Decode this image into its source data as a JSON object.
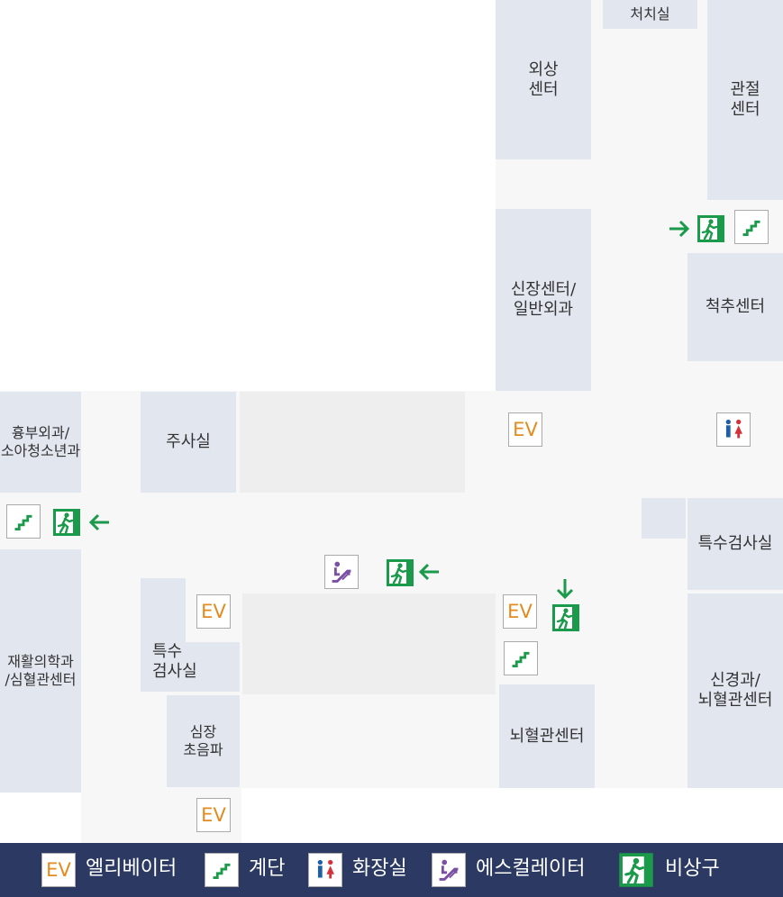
{
  "rooms": {
    "trauma_center": "외상\n센터",
    "treatment_room": "처치실",
    "joint_center": "관절\n센터",
    "kidney_center": "신장센터/\n일반외과",
    "spine_center": "척추센터",
    "chest_surgery": "흉부외과/\n소아청소년과",
    "injection_room": "주사실",
    "special_exam_right": "특수검사실",
    "rehab_center": "재활의학과\n/심혈관센터",
    "special_exam_left": "특수\n검사실",
    "cardiac_ultrasound": "심장\n초음파",
    "neuro_center": "신경과/\n뇌혈관센터",
    "cerebro_center": "뇌혈관센터"
  },
  "map_icons": {
    "ev_label": "EV"
  },
  "legend": {
    "ev_icon_text": "EV",
    "elevator": "엘리베이터",
    "stairs": "계단",
    "restroom": "화장실",
    "escalator": "에스컬레이터",
    "emergency_exit": "비상구"
  },
  "colors": {
    "room": "#e2e6ef",
    "corridor": "#f7f7f7",
    "legend_bg": "#2c3a63",
    "exit_green": "#1a9a4a",
    "ev_orange": "#e48a1e",
    "escalator_purple": "#7a4fa5",
    "male_blue": "#1f5fa8",
    "female_red": "#d6323b"
  }
}
